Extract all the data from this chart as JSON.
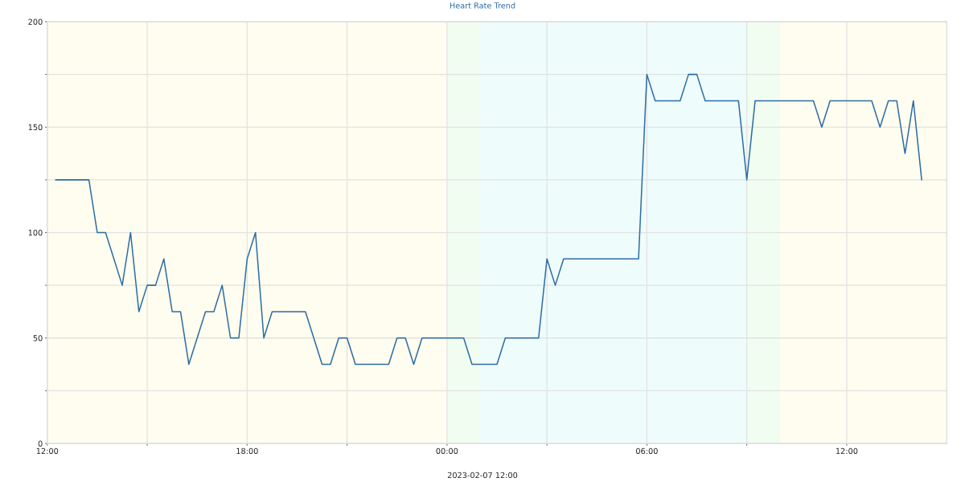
{
  "chart_data": {
    "type": "line",
    "title": "Heart Rate Trend",
    "xlabel": "2023-02-07 12:00",
    "x": [
      "2023-02-07T12:15",
      "2023-02-07T12:30",
      "2023-02-07T12:45",
      "2023-02-07T13:00",
      "2023-02-07T13:15",
      "2023-02-07T13:30",
      "2023-02-07T13:45",
      "2023-02-07T14:00",
      "2023-02-07T14:15",
      "2023-02-07T14:30",
      "2023-02-07T14:45",
      "2023-02-07T15:00",
      "2023-02-07T15:15",
      "2023-02-07T15:30",
      "2023-02-07T15:45",
      "2023-02-07T16:00",
      "2023-02-07T16:15",
      "2023-02-07T16:30",
      "2023-02-07T16:45",
      "2023-02-07T17:00",
      "2023-02-07T17:15",
      "2023-02-07T17:30",
      "2023-02-07T17:45",
      "2023-02-07T18:00",
      "2023-02-07T18:15",
      "2023-02-07T18:30",
      "2023-02-07T18:45",
      "2023-02-07T19:00",
      "2023-02-07T19:15",
      "2023-02-07T19:30",
      "2023-02-07T19:45",
      "2023-02-07T20:00",
      "2023-02-07T20:15",
      "2023-02-07T20:30",
      "2023-02-07T20:45",
      "2023-02-07T21:00",
      "2023-02-07T21:15",
      "2023-02-07T21:30",
      "2023-02-07T21:45",
      "2023-02-07T22:00",
      "2023-02-07T22:15",
      "2023-02-07T22:30",
      "2023-02-07T22:45",
      "2023-02-07T23:00",
      "2023-02-07T23:15",
      "2023-02-07T23:30",
      "2023-02-07T23:45",
      "2023-02-08T00:00",
      "2023-02-08T00:15",
      "2023-02-08T00:30",
      "2023-02-08T00:45",
      "2023-02-08T01:00",
      "2023-02-08T01:15",
      "2023-02-08T01:30",
      "2023-02-08T01:45",
      "2023-02-08T02:00",
      "2023-02-08T02:15",
      "2023-02-08T02:30",
      "2023-02-08T02:45",
      "2023-02-08T03:00",
      "2023-02-08T03:15",
      "2023-02-08T03:30",
      "2023-02-08T03:45",
      "2023-02-08T04:00",
      "2023-02-08T04:15",
      "2023-02-08T04:30",
      "2023-02-08T04:45",
      "2023-02-08T05:00",
      "2023-02-08T05:15",
      "2023-02-08T05:30",
      "2023-02-08T05:45",
      "2023-02-08T06:00",
      "2023-02-08T06:15",
      "2023-02-08T06:30",
      "2023-02-08T06:45",
      "2023-02-08T07:00",
      "2023-02-08T07:15",
      "2023-02-08T07:30",
      "2023-02-08T07:45",
      "2023-02-08T08:00",
      "2023-02-08T08:15",
      "2023-02-08T08:30",
      "2023-02-08T08:45",
      "2023-02-08T09:00",
      "2023-02-08T09:15",
      "2023-02-08T09:30",
      "2023-02-08T09:45",
      "2023-02-08T10:00",
      "2023-02-08T10:15",
      "2023-02-08T10:30",
      "2023-02-08T10:45",
      "2023-02-08T11:00",
      "2023-02-08T11:15",
      "2023-02-08T11:30",
      "2023-02-08T11:45",
      "2023-02-08T12:00",
      "2023-02-08T12:15",
      "2023-02-08T12:30",
      "2023-02-08T12:45",
      "2023-02-08T13:00",
      "2023-02-08T13:15",
      "2023-02-08T13:30",
      "2023-02-08T13:45",
      "2023-02-08T14:00",
      "2023-02-08T14:15"
    ],
    "series": [
      {
        "color": "#2e6da4",
        "values": [
          125,
          125,
          125,
          125,
          125,
          100,
          100,
          87.5,
          75,
          100,
          62.5,
          75,
          75,
          87.5,
          62.5,
          62.5,
          37.5,
          50,
          62.5,
          62.5,
          75,
          50,
          50,
          87.5,
          100,
          50,
          62.5,
          62.5,
          62.5,
          62.5,
          62.5,
          50,
          37.5,
          37.5,
          50,
          50,
          37.5,
          37.5,
          37.5,
          37.5,
          37.5,
          50,
          50,
          37.5,
          50,
          50,
          50,
          50,
          50,
          50,
          37.5,
          37.5,
          37.5,
          37.5,
          50,
          50,
          50,
          50,
          50,
          87.5,
          75,
          87.5,
          87.5,
          87.5,
          87.5,
          87.5,
          87.5,
          87.5,
          87.5,
          87.5,
          87.5,
          175,
          162.5,
          162.5,
          162.5,
          162.5,
          175,
          175,
          162.5,
          162.5,
          162.5,
          162.5,
          162.5,
          125,
          162.5,
          162.5,
          162.5,
          162.5,
          162.5,
          162.5,
          162.5,
          162.5,
          150,
          162.5,
          162.5,
          162.5,
          162.5,
          162.5,
          162.5,
          150,
          162.5,
          162.5,
          137.5,
          162.5,
          125
        ]
      }
    ],
    "xlim": [
      "2023-02-07T12:00",
      "2023-02-08T15:00"
    ],
    "xticks": [
      {
        "value": "2023-02-07T12:00",
        "label": "12:00"
      },
      {
        "value": "2023-02-07T15:00",
        "label": null
      },
      {
        "value": "2023-02-07T18:00",
        "label": "18:00"
      },
      {
        "value": "2023-02-07T21:00",
        "label": null
      },
      {
        "value": "2023-02-08T00:00",
        "label": "00:00"
      },
      {
        "value": "2023-02-08T03:00",
        "label": null
      },
      {
        "value": "2023-02-08T06:00",
        "label": "06:00"
      },
      {
        "value": "2023-02-08T09:00",
        "label": null
      },
      {
        "value": "2023-02-08T12:00",
        "label": "12:00"
      }
    ],
    "ylim": [
      0,
      200
    ],
    "yticks": [
      0,
      {
        "value": 25,
        "label": null
      },
      50,
      {
        "value": 75,
        "label": null
      },
      100,
      {
        "value": 125,
        "label": null
      },
      150,
      {
        "value": 175,
        "label": null
      },
      200
    ],
    "bands": [
      {
        "axis": "x",
        "from": "2023-02-07T12:00",
        "to": "2023-02-08T00:00",
        "color": "#fefdef"
      },
      {
        "axis": "x",
        "from": "2023-02-08T00:00",
        "to": "2023-02-08T01:00",
        "color": "#f1fdf1"
      },
      {
        "axis": "x",
        "from": "2023-02-08T01:00",
        "to": "2023-02-08T09:00",
        "color": "#eefcfc"
      },
      {
        "axis": "x",
        "from": "2023-02-08T09:00",
        "to": "2023-02-08T10:00",
        "color": "#f1fdf1"
      },
      {
        "axis": "x",
        "from": "2023-02-08T10:00",
        "to": "2023-02-08T15:00",
        "color": "#fefdef"
      }
    ],
    "grid": true
  }
}
